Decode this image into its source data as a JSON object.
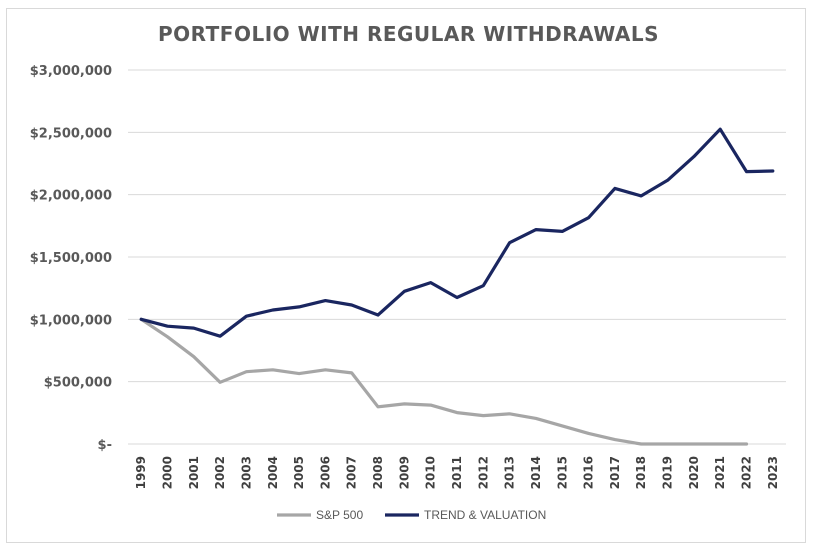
{
  "chart_data": {
    "type": "line",
    "title": "PORTFOLIO WITH REGULAR WITHDRAWALS",
    "xlabel": "",
    "ylabel": "",
    "ylim": [
      0,
      3000000
    ],
    "y_ticks": [
      {
        "value": 3000000,
        "label": "$3,000,000"
      },
      {
        "value": 2500000,
        "label": "$2,500,000"
      },
      {
        "value": 2000000,
        "label": "$2,000,000"
      },
      {
        "value": 1500000,
        "label": "$1,500,000"
      },
      {
        "value": 1000000,
        "label": "$1,000,000"
      },
      {
        "value": 500000,
        "label": "$500,000"
      },
      {
        "value": 0,
        "label": "$-"
      }
    ],
    "grid": true,
    "legend_position": "bottom",
    "categories": [
      "1999",
      "2000",
      "2001",
      "2002",
      "2003",
      "2004",
      "2005",
      "2006",
      "2007",
      "2008",
      "2009",
      "2010",
      "2011",
      "2012",
      "2013",
      "2014",
      "2015",
      "2016",
      "2017",
      "2018",
      "2019",
      "2020",
      "2021",
      "2022",
      "2023"
    ],
    "series": [
      {
        "name": "S&P 500",
        "color": "#a6a6a6",
        "values": [
          1000000,
          860000,
          700000,
          495000,
          580000,
          595000,
          565000,
          595000,
          570000,
          298000,
          322000,
          312000,
          252000,
          228000,
          242000,
          205000,
          145000,
          85000,
          35000,
          0,
          0,
          0,
          0,
          0,
          null
        ]
      },
      {
        "name": "TREND & VALUATION",
        "color": "#1a2660",
        "values": [
          1000000,
          945000,
          930000,
          865000,
          1025000,
          1075000,
          1100000,
          1150000,
          1115000,
          1035000,
          1225000,
          1295000,
          1175000,
          1270000,
          1615000,
          1720000,
          1705000,
          1815000,
          2050000,
          1990000,
          2115000,
          2305000,
          2525000,
          2185000,
          2190000
        ]
      }
    ]
  }
}
